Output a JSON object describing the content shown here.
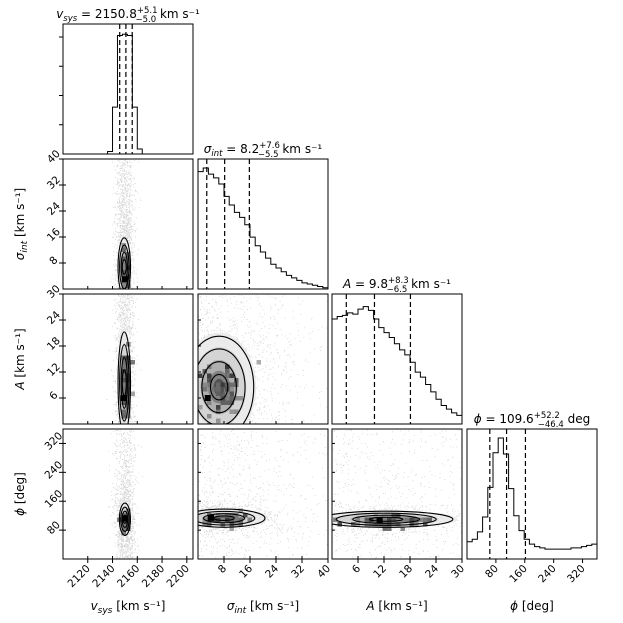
{
  "chart_data": {
    "type": "corner",
    "params": [
      {
        "key": "vsys",
        "label_sym": "v",
        "label_sub": "sys",
        "label_unit": " [km s⁻¹]",
        "title_sym": "v",
        "title_sub": "sys",
        "title_eq": " = 2150.8",
        "title_sup": "+5.1",
        "title_subscr": "−5.0",
        "title_unit": " km s⁻¹",
        "range": [
          2100,
          2205
        ],
        "ticks": [
          2120,
          2140,
          2160,
          2180,
          2200
        ],
        "tick_labels": [
          "2120",
          "2140",
          "2160",
          "2180",
          "2200"
        ],
        "quantiles": [
          2145.8,
          2150.8,
          2155.9
        ],
        "hist_edges": [
          2136,
          2140,
          2144,
          2148,
          2152,
          2156,
          2160,
          2164
        ],
        "hist_counts": [
          0.02,
          0.38,
          0.96,
          0.97,
          0.96,
          0.38,
          0.04
        ]
      },
      {
        "key": "sigma",
        "label_sym": "σ",
        "label_sub": "int",
        "label_unit": " [km s⁻¹]",
        "title_sym": "σ",
        "title_sub": "int",
        "title_eq": " = 8.2",
        "title_sup": "+7.6",
        "title_subscr": "−5.5",
        "title_unit": " km s⁻¹",
        "range": [
          0,
          40
        ],
        "ticks": [
          8,
          16,
          24,
          32,
          40
        ],
        "tick_labels": [
          "8",
          "16",
          "24",
          "32",
          "40"
        ],
        "quantiles": [
          2.7,
          8.2,
          15.8
        ],
        "hist_edges": [
          0,
          1.6,
          3.2,
          4.8,
          6.4,
          8.0,
          9.6,
          11.2,
          12.8,
          14.4,
          16.0,
          17.6,
          19.2,
          20.8,
          22.4,
          24.0,
          25.6,
          27.2,
          28.8,
          30.4,
          32.0,
          33.6,
          35.2,
          36.8,
          38.4,
          40.0
        ],
        "hist_counts": [
          0.95,
          0.98,
          0.93,
          0.9,
          0.85,
          0.75,
          0.68,
          0.62,
          0.58,
          0.52,
          0.42,
          0.35,
          0.3,
          0.25,
          0.2,
          0.17,
          0.14,
          0.11,
          0.09,
          0.07,
          0.05,
          0.04,
          0.03,
          0.02,
          0.01
        ]
      },
      {
        "key": "A",
        "label_sym": "A",
        "label_sub": "",
        "label_unit": " [km s⁻¹]",
        "title_sym": "A",
        "title_sub": "",
        "title_eq": " = 9.8",
        "title_sup": "+8.3",
        "title_subscr": "−6.5",
        "title_unit": " km s⁻¹",
        "range": [
          0,
          30
        ],
        "ticks": [
          6,
          12,
          18,
          24,
          30
        ],
        "tick_labels": [
          "6",
          "12",
          "18",
          "24",
          "30"
        ],
        "quantiles": [
          3.3,
          9.8,
          18.1
        ],
        "hist_edges": [
          0,
          1.2,
          2.4,
          3.6,
          4.8,
          6.0,
          7.2,
          8.4,
          9.6,
          10.8,
          12.0,
          13.2,
          14.4,
          15.6,
          16.8,
          18.0,
          19.2,
          20.4,
          21.6,
          22.8,
          24.0,
          25.2,
          26.4,
          27.6,
          28.8,
          30.0
        ],
        "hist_counts": [
          0.85,
          0.87,
          0.88,
          0.9,
          0.89,
          0.93,
          0.95,
          0.92,
          0.85,
          0.78,
          0.74,
          0.7,
          0.65,
          0.6,
          0.56,
          0.5,
          0.42,
          0.38,
          0.32,
          0.26,
          0.2,
          0.15,
          0.12,
          0.09,
          0.07
        ]
      },
      {
        "key": "phi",
        "label_sym": "ϕ",
        "label_sub": "",
        "label_unit": " [deg]",
        "title_sym": "ϕ",
        "title_sub": "",
        "title_eq": " = 109.6",
        "title_sup": "+52.2",
        "title_subscr": "−46.4",
        "title_unit": " deg",
        "range": [
          0,
          360
        ],
        "ticks": [
          80,
          160,
          240,
          320
        ],
        "tick_labels": [
          "80",
          "160",
          "240",
          "320"
        ],
        "quantiles": [
          63.2,
          109.6,
          161.8
        ],
        "hist_edges": [
          0,
          14.4,
          28.8,
          43.2,
          57.6,
          72,
          86.4,
          100.8,
          115.2,
          129.6,
          144,
          158.4,
          172.8,
          187.2,
          201.6,
          216,
          230.4,
          244.8,
          259.2,
          273.6,
          288,
          302.4,
          316.8,
          331.2,
          345.6,
          360
        ],
        "hist_counts": [
          0.14,
          0.16,
          0.22,
          0.34,
          0.58,
          0.86,
          0.98,
          0.85,
          0.57,
          0.35,
          0.23,
          0.16,
          0.12,
          0.1,
          0.09,
          0.08,
          0.08,
          0.08,
          0.08,
          0.08,
          0.09,
          0.09,
          0.1,
          0.11,
          0.12
        ]
      }
    ],
    "blobs": [
      {
        "pair": [
          1,
          0
        ],
        "cx": 2149.5,
        "cy": 6.8,
        "sx": 1.8,
        "sy": 3.2,
        "sx_out": 3.5,
        "sy_out": 16,
        "peak": [
          2150,
          3
        ]
      },
      {
        "pair": [
          2,
          0
        ],
        "cx": 2149.5,
        "cy": 9.5,
        "sx": 1.8,
        "sy": 4.2,
        "sx_out": 3.5,
        "sy_out": 14,
        "peak": [
          2149,
          6
        ]
      },
      {
        "pair": [
          3,
          0
        ],
        "cx": 2150.0,
        "cy": 110,
        "sx": 1.6,
        "sy": 16,
        "sx_out": 3.8,
        "sy_out": 55,
        "peak": [
          2150,
          112
        ]
      },
      {
        "pair": [
          2,
          1
        ],
        "cx": 6.5,
        "cy": 8.5,
        "sx": 3.8,
        "sy": 4.2,
        "sx_out": 9,
        "sy_out": 11,
        "peak": [
          3,
          6
        ]
      },
      {
        "pair": [
          3,
          1
        ],
        "cx": 8.0,
        "cy": 113,
        "sx": 4.5,
        "sy": 9,
        "sx_out": 10,
        "sy_out": 26,
        "peak": [
          4,
          114
        ]
      },
      {
        "pair": [
          3,
          2
        ],
        "cx": 12.5,
        "cy": 110,
        "sx": 5.5,
        "sy": 8,
        "sx_out": 9,
        "sy_out": 22,
        "peak": [
          11,
          108
        ]
      }
    ]
  }
}
